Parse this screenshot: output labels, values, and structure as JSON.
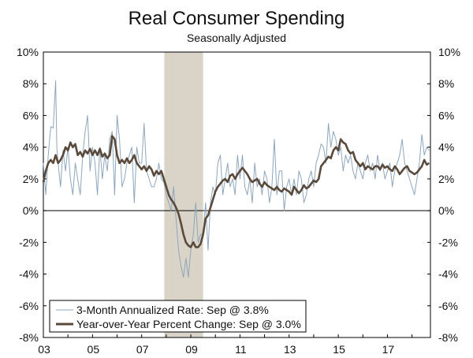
{
  "chart_data": {
    "type": "line",
    "title": "Real Consumer Spending",
    "subtitle": "Seasonally Adjusted",
    "xlabel": "",
    "ylabel": "",
    "x_range": [
      2003.0,
      2018.75
    ],
    "ylim": [
      -8,
      10
    ],
    "y_ticks": [
      10,
      8,
      6,
      4,
      2,
      0,
      -2,
      -4,
      -6,
      -8
    ],
    "y_tick_labels": [
      "10%",
      "8%",
      "6%",
      "4%",
      "2%",
      "0%",
      "-2%",
      "-4%",
      "-6%",
      "-8%"
    ],
    "x_ticks": [
      2003,
      2005,
      2007,
      2009,
      2011,
      2013,
      2015,
      2017
    ],
    "x_tick_labels": [
      "03",
      "05",
      "07",
      "09",
      "11",
      "13",
      "15",
      "17"
    ],
    "recession_band": [
      2007.92,
      2009.5
    ],
    "legend_position": "bottom-left",
    "colors": {
      "three_month": "#8ea6bd",
      "year_over_year": "#5a4a3b",
      "recession": "#d9d4c7"
    },
    "series": [
      {
        "name": "3-Month Annualized Rate: Sep @ 3.8%",
        "x": [
          2003.0,
          2003.1,
          2003.2,
          2003.3,
          2003.4,
          2003.5,
          2003.55,
          2003.6,
          2003.7,
          2003.8,
          2003.9,
          2004.0,
          2004.1,
          2004.2,
          2004.3,
          2004.4,
          2004.5,
          2004.6,
          2004.7,
          2004.8,
          2004.9,
          2005.0,
          2005.1,
          2005.2,
          2005.3,
          2005.4,
          2005.5,
          2005.6,
          2005.7,
          2005.8,
          2005.9,
          2006.0,
          2006.1,
          2006.2,
          2006.3,
          2006.4,
          2006.5,
          2006.6,
          2006.7,
          2006.8,
          2006.9,
          2007.0,
          2007.1,
          2007.2,
          2007.3,
          2007.4,
          2007.5,
          2007.6,
          2007.7,
          2007.8,
          2007.9,
          2008.0,
          2008.1,
          2008.2,
          2008.3,
          2008.4,
          2008.5,
          2008.6,
          2008.7,
          2008.8,
          2008.9,
          2009.0,
          2009.1,
          2009.2,
          2009.3,
          2009.4,
          2009.5,
          2009.6,
          2009.7,
          2009.8,
          2009.9,
          2010.0,
          2010.1,
          2010.2,
          2010.3,
          2010.4,
          2010.5,
          2010.6,
          2010.7,
          2010.8,
          2010.9,
          2011.0,
          2011.1,
          2011.2,
          2011.3,
          2011.4,
          2011.5,
          2011.6,
          2011.7,
          2011.8,
          2011.9,
          2012.0,
          2012.1,
          2012.2,
          2012.3,
          2012.4,
          2012.5,
          2012.6,
          2012.7,
          2012.8,
          2012.9,
          2013.0,
          2013.1,
          2013.2,
          2013.3,
          2013.4,
          2013.5,
          2013.6,
          2013.7,
          2013.8,
          2013.9,
          2014.0,
          2014.1,
          2014.2,
          2014.3,
          2014.4,
          2014.5,
          2014.6,
          2014.7,
          2014.8,
          2014.9,
          2015.0,
          2015.1,
          2015.2,
          2015.3,
          2015.4,
          2015.5,
          2015.6,
          2015.7,
          2015.8,
          2015.9,
          2016.0,
          2016.1,
          2016.2,
          2016.3,
          2016.4,
          2016.5,
          2016.6,
          2016.7,
          2016.8,
          2016.9,
          2017.0,
          2017.1,
          2017.2,
          2017.3,
          2017.4,
          2017.5,
          2017.6,
          2017.7,
          2017.8,
          2017.9,
          2018.0,
          2018.1,
          2018.2,
          2018.3,
          2018.4,
          2018.5,
          2018.6,
          2018.7
        ],
        "values": [
          3.0,
          1.0,
          3.5,
          5.3,
          5.2,
          8.2,
          4.0,
          3.0,
          1.5,
          3.8,
          2.5,
          4.0,
          2.0,
          1.0,
          3.0,
          2.0,
          1.0,
          3.5,
          5.0,
          6.0,
          2.5,
          4.0,
          3.0,
          1.0,
          4.0,
          2.0,
          3.5,
          2.5,
          4.5,
          5.0,
          1.0,
          6.0,
          4.5,
          1.5,
          2.0,
          3.0,
          3.5,
          4.0,
          0.5,
          4.0,
          3.0,
          3.0,
          5.5,
          2.5,
          2.0,
          1.5,
          1.5,
          2.0,
          3.0,
          2.0,
          1.8,
          1.0,
          0.5,
          0.0,
          1.5,
          -0.5,
          -2.5,
          -3.5,
          -4.2,
          -3.0,
          -4.2,
          -2.5,
          -1.5,
          0.5,
          -2.0,
          -1.5,
          -1.5,
          0.5,
          -2.5,
          0.5,
          1.5,
          1.0,
          3.0,
          3.5,
          1.0,
          2.0,
          3.0,
          1.5,
          2.0,
          1.0,
          3.5,
          2.0,
          3.5,
          1.5,
          1.0,
          2.0,
          0.5,
          3.0,
          1.5,
          2.0,
          1.0,
          2.5,
          2.0,
          0.5,
          1.5,
          4.5,
          1.0,
          2.5,
          2.5,
          0.0,
          1.5,
          2.0,
          1.0,
          2.0,
          1.0,
          2.5,
          2.0,
          0.5,
          1.0,
          2.0,
          2.5,
          1.5,
          3.0,
          3.5,
          4.2,
          4.0,
          3.0,
          5.5,
          4.0,
          5.0,
          4.5,
          3.5,
          4.0,
          2.5,
          3.5,
          3.0,
          3.5,
          2.5,
          2.0,
          3.0,
          2.5,
          2.0,
          3.0,
          3.5,
          2.5,
          3.0,
          2.0,
          3.5,
          2.5,
          3.0,
          2.0,
          2.5,
          3.0,
          1.5,
          2.5,
          3.0,
          3.5,
          4.5,
          3.0,
          2.5,
          2.0,
          1.5,
          1.0,
          2.0,
          3.0,
          4.8,
          3.5,
          4.0,
          3.8
        ]
      },
      {
        "name": "Year-over-Year Percent Change: Sep @ 3.0%",
        "x": [
          2003.0,
          2003.1,
          2003.2,
          2003.3,
          2003.4,
          2003.5,
          2003.6,
          2003.7,
          2003.8,
          2003.9,
          2004.0,
          2004.1,
          2004.2,
          2004.3,
          2004.4,
          2004.5,
          2004.6,
          2004.7,
          2004.8,
          2004.9,
          2005.0,
          2005.1,
          2005.2,
          2005.3,
          2005.4,
          2005.5,
          2005.6,
          2005.7,
          2005.8,
          2005.9,
          2006.0,
          2006.1,
          2006.2,
          2006.3,
          2006.4,
          2006.5,
          2006.6,
          2006.7,
          2006.8,
          2006.9,
          2007.0,
          2007.1,
          2007.2,
          2007.3,
          2007.4,
          2007.5,
          2007.6,
          2007.7,
          2007.8,
          2007.9,
          2008.0,
          2008.1,
          2008.2,
          2008.3,
          2008.4,
          2008.5,
          2008.6,
          2008.7,
          2008.8,
          2008.9,
          2009.0,
          2009.1,
          2009.2,
          2009.3,
          2009.4,
          2009.5,
          2009.6,
          2009.7,
          2009.8,
          2009.9,
          2010.0,
          2010.1,
          2010.2,
          2010.3,
          2010.4,
          2010.5,
          2010.6,
          2010.7,
          2010.8,
          2010.9,
          2011.0,
          2011.1,
          2011.2,
          2011.3,
          2011.4,
          2011.5,
          2011.6,
          2011.7,
          2011.8,
          2011.9,
          2012.0,
          2012.1,
          2012.2,
          2012.3,
          2012.4,
          2012.5,
          2012.6,
          2012.7,
          2012.8,
          2012.9,
          2013.0,
          2013.1,
          2013.2,
          2013.3,
          2013.4,
          2013.5,
          2013.6,
          2013.7,
          2013.8,
          2013.9,
          2014.0,
          2014.1,
          2014.2,
          2014.3,
          2014.4,
          2014.5,
          2014.6,
          2014.7,
          2014.8,
          2014.9,
          2015.0,
          2015.1,
          2015.2,
          2015.3,
          2015.4,
          2015.5,
          2015.6,
          2015.7,
          2015.8,
          2015.9,
          2016.0,
          2016.1,
          2016.2,
          2016.3,
          2016.4,
          2016.5,
          2016.6,
          2016.7,
          2016.8,
          2016.9,
          2017.0,
          2017.1,
          2017.2,
          2017.3,
          2017.4,
          2017.5,
          2017.6,
          2017.7,
          2017.8,
          2017.9,
          2018.0,
          2018.1,
          2018.2,
          2018.3,
          2018.4,
          2018.5,
          2018.6,
          2018.7
        ],
        "values": [
          1.8,
          2.5,
          3.0,
          3.2,
          3.0,
          3.5,
          3.0,
          3.2,
          3.5,
          4.0,
          3.8,
          4.3,
          4.0,
          4.2,
          3.5,
          3.7,
          3.4,
          3.8,
          3.6,
          3.9,
          3.5,
          3.8,
          3.5,
          3.9,
          3.4,
          3.6,
          3.3,
          3.5,
          4.7,
          4.5,
          3.5,
          3.0,
          3.2,
          3.0,
          3.3,
          3.0,
          3.2,
          3.5,
          3.0,
          2.8,
          2.6,
          2.8,
          2.5,
          2.8,
          2.6,
          2.2,
          2.5,
          2.3,
          2.5,
          2.0,
          1.5,
          1.0,
          0.7,
          0.5,
          0.2,
          -0.2,
          -0.8,
          -1.5,
          -2.0,
          -2.2,
          -2.3,
          -2.0,
          -2.3,
          -2.3,
          -2.1,
          -1.5,
          -0.5,
          -0.3,
          0.2,
          0.7,
          1.2,
          1.5,
          1.7,
          1.9,
          2.0,
          1.8,
          2.2,
          2.3,
          2.0,
          2.3,
          2.5,
          2.7,
          2.5,
          2.3,
          2.0,
          1.8,
          1.9,
          2.0,
          1.7,
          1.5,
          1.8,
          1.6,
          1.5,
          1.4,
          1.3,
          1.5,
          1.3,
          1.2,
          1.4,
          1.3,
          1.2,
          1.0,
          1.5,
          1.3,
          1.1,
          1.3,
          1.6,
          1.4,
          1.5,
          1.7,
          1.9,
          1.8,
          2.0,
          2.8,
          3.0,
          3.2,
          3.4,
          3.3,
          3.8,
          4.0,
          3.8,
          4.5,
          4.3,
          4.2,
          3.8,
          3.6,
          3.7,
          3.2,
          3.0,
          2.8,
          3.0,
          2.6,
          2.8,
          2.7,
          2.6,
          2.8,
          2.8,
          2.6,
          2.9,
          2.7,
          2.8,
          2.6,
          2.5,
          2.8,
          2.6,
          2.3,
          2.5,
          2.7,
          2.8,
          2.5,
          2.4,
          2.3,
          2.4,
          2.6,
          2.8,
          3.2,
          2.9,
          3.0
        ]
      }
    ]
  }
}
